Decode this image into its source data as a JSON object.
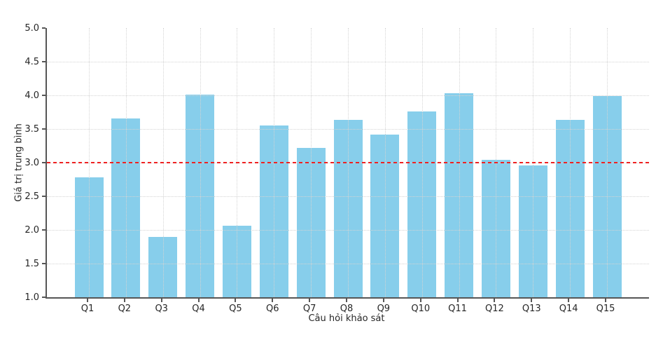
{
  "accent_colors": {
    "bar_fill": "#87CEEB",
    "reference_line": "#ee2222",
    "grid": "#d4d4d4",
    "spine": "#565656",
    "text": "#262626"
  },
  "chart_data": {
    "type": "bar",
    "title": "",
    "xlabel": "Câu hỏi khảo sát",
    "ylabel": "Giá trị trung bình",
    "categories": [
      "Q1",
      "Q2",
      "Q3",
      "Q4",
      "Q5",
      "Q6",
      "Q7",
      "Q8",
      "Q9",
      "Q10",
      "Q11",
      "Q12",
      "Q13",
      "Q14",
      "Q15"
    ],
    "values": [
      2.78,
      3.66,
      1.9,
      4.01,
      2.06,
      3.55,
      3.22,
      3.64,
      3.42,
      3.76,
      4.03,
      3.04,
      2.96,
      3.64,
      3.99
    ],
    "ylim": [
      1.0,
      5.0
    ],
    "ytick_labels": [
      "1.0",
      "1.5",
      "2.0",
      "2.5",
      "3.0",
      "3.5",
      "4.0",
      "4.5",
      "5.0"
    ],
    "grid": "dotted, horizontal at each 0.5 tick and vertical at each category",
    "legend": "none",
    "reference_line": {
      "y": 3.0,
      "color": "#ee2222",
      "style": "dashed"
    },
    "bar_color": "#87CEEB"
  }
}
